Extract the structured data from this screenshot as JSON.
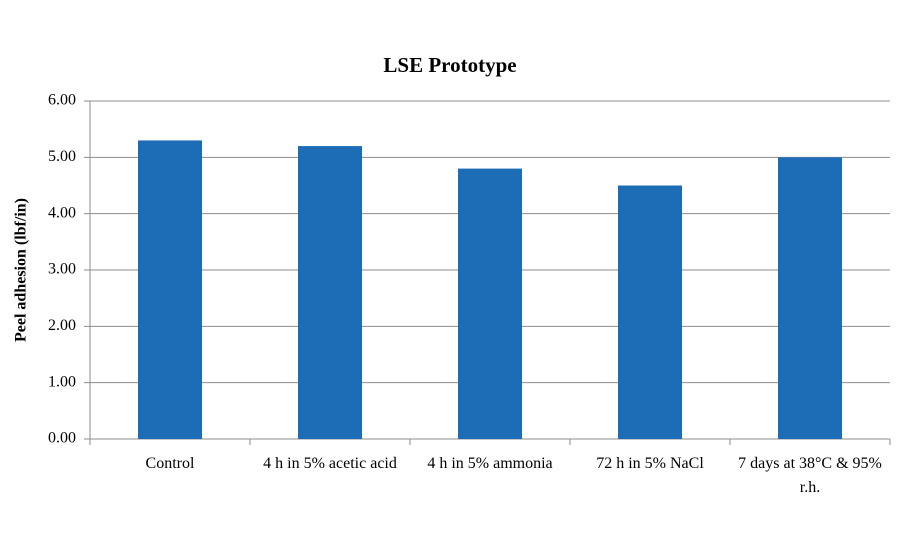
{
  "chart_data": {
    "type": "bar",
    "title": "LSE Prototype",
    "y_label": "Peel adhesion (lbf/in)",
    "categories": [
      "Control",
      "4 h in 5% acetic acid",
      "4 h in 5% ammonia",
      "72 h in 5% NaCl",
      "7 days at 38°C & 95% r.h."
    ],
    "values": [
      5.3,
      5.2,
      4.8,
      4.5,
      5.0
    ],
    "color": "#1c6db6",
    "ylim": [
      0,
      6
    ],
    "yticks": [
      {
        "value": 0,
        "label": "0.00"
      },
      {
        "value": 1,
        "label": "1.00"
      },
      {
        "value": 2,
        "label": "2.00"
      },
      {
        "value": 3,
        "label": "3.00"
      },
      {
        "value": 4,
        "label": "4.00"
      },
      {
        "value": 5,
        "label": "5.00"
      },
      {
        "value": 6,
        "label": "6.00"
      }
    ],
    "grid": true
  }
}
